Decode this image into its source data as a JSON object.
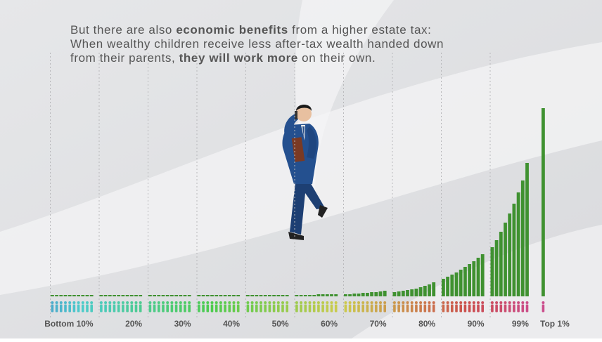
{
  "chart_data": {
    "type": "bar",
    "title_lines": [
      [
        {
          "text": "But there are also ",
          "bold": false
        },
        {
          "text": "economic benefits",
          "bold": true
        },
        {
          "text": " from a higher estate tax:",
          "bold": false
        }
      ],
      [
        {
          "text": "When wealthy children receive less after-tax wealth handed down",
          "bold": false
        }
      ],
      [
        {
          "text": "from their parents, ",
          "bold": false
        },
        {
          "text": "they will work more",
          "bold": true
        },
        {
          "text": " on their own.",
          "bold": false
        }
      ]
    ],
    "color": "#3f9130",
    "categories": [
      null,
      null,
      null,
      null,
      null,
      null,
      null,
      null,
      null,
      "Bottom 10%",
      null,
      null,
      null,
      null,
      null,
      null,
      null,
      null,
      null,
      "20%",
      null,
      null,
      null,
      null,
      null,
      null,
      null,
      null,
      null,
      "30%",
      null,
      null,
      null,
      null,
      null,
      null,
      null,
      null,
      null,
      "40%",
      null,
      null,
      null,
      null,
      null,
      null,
      null,
      null,
      null,
      "50%",
      null,
      null,
      null,
      null,
      null,
      null,
      null,
      null,
      null,
      "60%",
      null,
      null,
      null,
      null,
      null,
      null,
      null,
      null,
      null,
      "70%",
      null,
      null,
      null,
      null,
      null,
      null,
      null,
      null,
      null,
      "80%",
      null,
      null,
      null,
      null,
      null,
      null,
      null,
      null,
      null,
      "90%",
      null,
      null,
      null,
      null,
      null,
      null,
      null,
      null,
      "99%",
      "Top 1%"
    ],
    "values": [
      2,
      2,
      2,
      2,
      2,
      2,
      2,
      2,
      2,
      2,
      2,
      2,
      2,
      2,
      2,
      2,
      2,
      2,
      2,
      2,
      2,
      2,
      2,
      2,
      2,
      2,
      2,
      2,
      2,
      2,
      2,
      2,
      2,
      2,
      2,
      2,
      2,
      2,
      2,
      2,
      2,
      2,
      2,
      2,
      2,
      2,
      2,
      2,
      2,
      2,
      2,
      2,
      2,
      2,
      2,
      3,
      3,
      3,
      3,
      3,
      3,
      3,
      4,
      4,
      5,
      5,
      6,
      6,
      7,
      8,
      6,
      7,
      8,
      9,
      10,
      11,
      13,
      15,
      17,
      20,
      25,
      28,
      31,
      34,
      38,
      42,
      46,
      50,
      55,
      60,
      70,
      80,
      92,
      105,
      118,
      132,
      148,
      165,
      190,
      268
    ]
  }
}
